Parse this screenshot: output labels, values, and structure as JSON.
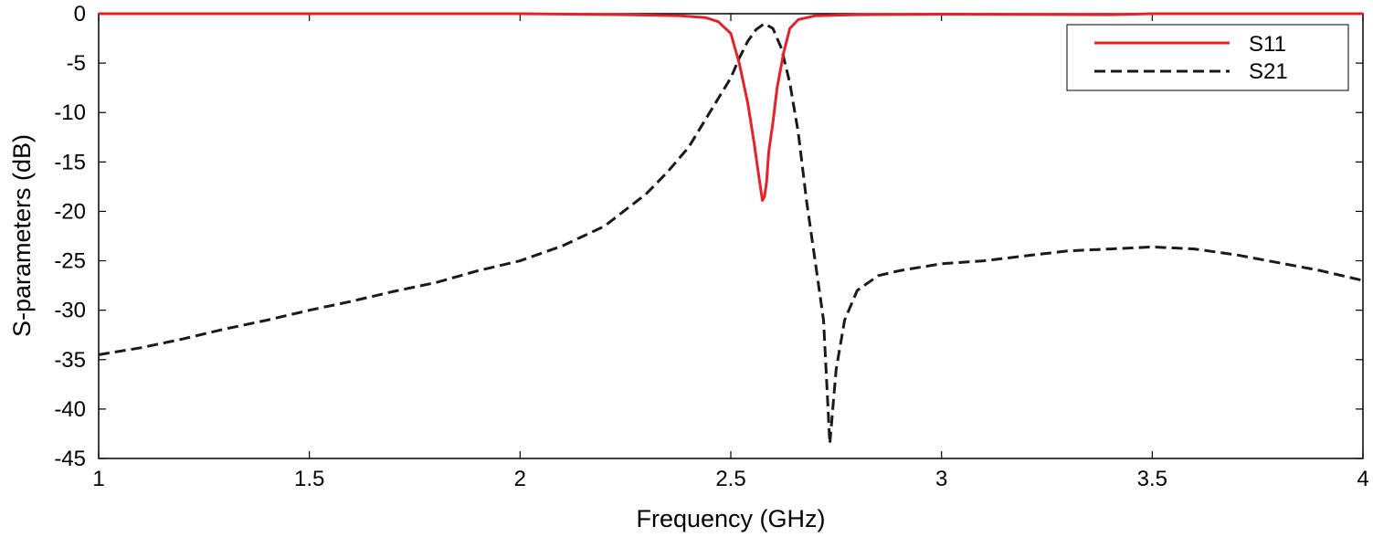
{
  "chart_data": {
    "type": "line",
    "title": "",
    "xlabel": "Frequency (GHz)",
    "ylabel": "S-parameters (dB)",
    "xlim": [
      1,
      4
    ],
    "ylim": [
      -45,
      0
    ],
    "xticks": [
      1,
      1.5,
      2,
      2.5,
      3,
      3.5,
      4
    ],
    "xtick_labels": [
      "1",
      "1.5",
      "2",
      "2.5",
      "3",
      "3.5",
      "4"
    ],
    "yticks": [
      0,
      -5,
      -10,
      -15,
      -20,
      -25,
      -30,
      -35,
      -40,
      -45
    ],
    "ytick_labels": [
      "0",
      "-5",
      "-10",
      "-15",
      "-20",
      "-25",
      "-30",
      "-35",
      "-40",
      "-45"
    ],
    "grid": false,
    "legend_position": "top-right",
    "series": [
      {
        "name": "S11",
        "color": "#e0242a",
        "style": "solid",
        "x": [
          1.0,
          2.0,
          2.25,
          2.38,
          2.44,
          2.47,
          2.5,
          2.52,
          2.54,
          2.555,
          2.565,
          2.575,
          2.58,
          2.585,
          2.59,
          2.6,
          2.61,
          2.625,
          2.64,
          2.66,
          2.7,
          2.8,
          3.0,
          3.4,
          3.5,
          4.0
        ],
        "y": [
          0,
          0,
          -0.1,
          -0.2,
          -0.4,
          -0.8,
          -2.0,
          -5.0,
          -9.0,
          -13.0,
          -16.0,
          -18.9,
          -18.5,
          -17.0,
          -14.0,
          -11.0,
          -7.5,
          -4.0,
          -1.5,
          -0.6,
          -0.2,
          -0.1,
          -0.05,
          -0.1,
          0,
          0
        ]
      },
      {
        "name": "S21",
        "color": "#1a1a1a",
        "style": "dashed",
        "x": [
          1.0,
          1.1,
          1.2,
          1.3,
          1.4,
          1.5,
          1.6,
          1.7,
          1.8,
          1.9,
          2.0,
          2.1,
          2.2,
          2.3,
          2.35,
          2.4,
          2.45,
          2.5,
          2.52,
          2.54,
          2.56,
          2.58,
          2.6,
          2.62,
          2.64,
          2.66,
          2.68,
          2.7,
          2.72,
          2.735,
          2.75,
          2.77,
          2.8,
          2.85,
          2.9,
          3.0,
          3.1,
          3.2,
          3.3,
          3.4,
          3.5,
          3.6,
          3.7,
          3.8,
          3.9,
          4.0
        ],
        "y": [
          -34.5,
          -33.8,
          -32.9,
          -31.9,
          -31.0,
          -30.0,
          -29.1,
          -28.1,
          -27.2,
          -26.0,
          -25.0,
          -23.5,
          -21.5,
          -18.2,
          -16.0,
          -13.5,
          -10.0,
          -6.5,
          -4.5,
          -2.8,
          -1.6,
          -1.0,
          -1.5,
          -3.5,
          -7.0,
          -12.0,
          -19.0,
          -25.0,
          -31.0,
          -43.5,
          -36.0,
          -31.0,
          -28.0,
          -26.5,
          -26.0,
          -25.3,
          -25.0,
          -24.5,
          -24.0,
          -23.8,
          -23.6,
          -23.8,
          -24.4,
          -25.2,
          -26.0,
          -27.0
        ]
      }
    ]
  }
}
